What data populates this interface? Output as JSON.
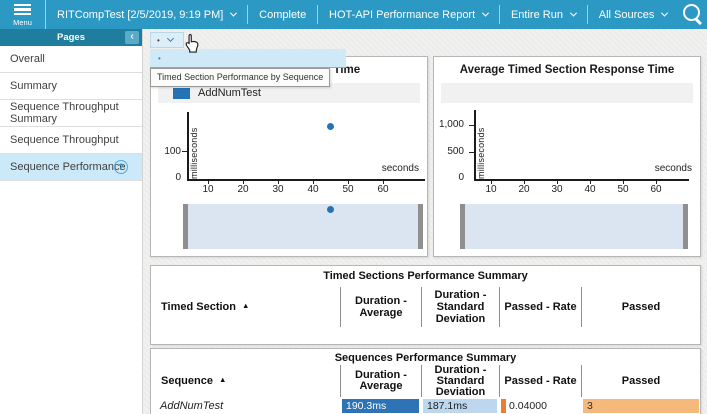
{
  "topbar": {
    "menu_label": "Menu",
    "run_selector": "RITCompTest [2/5/2019, 9:19 PM]",
    "status": "Complete",
    "report_selector": "HOT-API Performance Report",
    "range_selector": "Entire Run",
    "sources_selector": "All Sources"
  },
  "sidebar": {
    "title": "Pages",
    "collapse_label": "‹",
    "help_label": "?",
    "items": [
      {
        "label": "Overall",
        "selected": false
      },
      {
        "label": "Summary",
        "selected": false
      },
      {
        "label": "Sequence Throughput Summary",
        "selected": false
      },
      {
        "label": "Sequence Throughput",
        "selected": false
      },
      {
        "label": "Sequence Performance",
        "selected": true
      }
    ]
  },
  "chart_selector": {
    "collapsed_value": "•",
    "highlighted_option": "•",
    "tooltip": "Timed Section Performance by Sequence"
  },
  "chart_data": [
    {
      "type": "scatter",
      "title": "Sequence Response Time",
      "legend": [
        {
          "name": "AddNumTest",
          "color": "#2474b5"
        }
      ],
      "xlabel": "seconds",
      "ylabel": "milliseconds",
      "x_ticks": [
        "10",
        "20",
        "30",
        "40",
        "50",
        "60"
      ],
      "y_ticks": [
        "0",
        "100"
      ],
      "xlim": [
        0,
        65
      ],
      "ylim": [
        0,
        220
      ],
      "grid": false,
      "series": [
        {
          "name": "AddNumTest",
          "color": "#2474b5",
          "points": [
            {
              "x": 45,
              "y": 190
            }
          ]
        }
      ],
      "navigator": {
        "visible": true,
        "point_x": 45
      }
    },
    {
      "type": "scatter",
      "title": "Average Timed Section Response Time",
      "legend": [],
      "xlabel": "seconds",
      "ylabel": "milliseconds",
      "x_ticks": [
        "10",
        "20",
        "30",
        "40",
        "50",
        "60"
      ],
      "y_ticks": [
        "0",
        "500",
        "1,000"
      ],
      "xlim": [
        0,
        65
      ],
      "ylim": [
        0,
        1000
      ],
      "grid": false,
      "series": [],
      "navigator": {
        "visible": true,
        "point_x": null
      }
    }
  ],
  "tables": [
    {
      "title": "Timed Sections Performance Summary",
      "sort_indicator": "▲",
      "columns": [
        "Timed Section",
        "Duration - Average",
        "Duration - Standard Deviation",
        "Passed - Rate",
        "Passed"
      ],
      "rows": []
    },
    {
      "title": "Sequences Performance Summary",
      "sort_indicator": "▲",
      "columns": [
        "Sequence",
        "Duration - Average",
        "Duration - Standard Deviation",
        "Passed - Rate",
        "Passed"
      ],
      "rows": [
        {
          "sequence": "AddNumTest",
          "duration_avg": "190.3ms",
          "duration_std": "187.1ms",
          "passed_rate": "0.04000",
          "passed": "3"
        }
      ]
    }
  ],
  "colors": {
    "topbar_bg": "#2b99c4",
    "sidebar_header_bg": "#1f7e9d",
    "selected_item_bg": "#cbe9f8",
    "accent_blue": "#2474b5",
    "bar_dark_blue": "#2e73b5",
    "bar_light_blue": "#bdd7ee",
    "bar_orange": "#ed7d31",
    "bar_light_orange": "#f5b97c",
    "navigator_bg": "#dbe5f1"
  }
}
